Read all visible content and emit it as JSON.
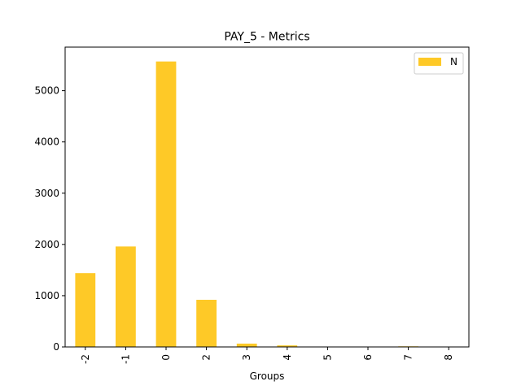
{
  "chart_data": {
    "type": "bar",
    "title": "PAY_5 - Metrics",
    "xlabel": "Groups",
    "ylabel": "",
    "categories": [
      "-2",
      "-1",
      "0",
      "2",
      "3",
      "4",
      "5",
      "6",
      "7",
      "8"
    ],
    "series": [
      {
        "name": "N",
        "values": [
          1440,
          1960,
          5570,
          920,
          65,
          30,
          3,
          2,
          12,
          1
        ]
      }
    ],
    "ylim": [
      0,
      5850
    ],
    "yticks": [
      0,
      1000,
      2000,
      3000,
      4000,
      5000
    ],
    "grid": false,
    "legend_position": "top-right",
    "colors": {
      "bar": "#fec927",
      "axis": "#000000",
      "background": "#ffffff"
    }
  }
}
